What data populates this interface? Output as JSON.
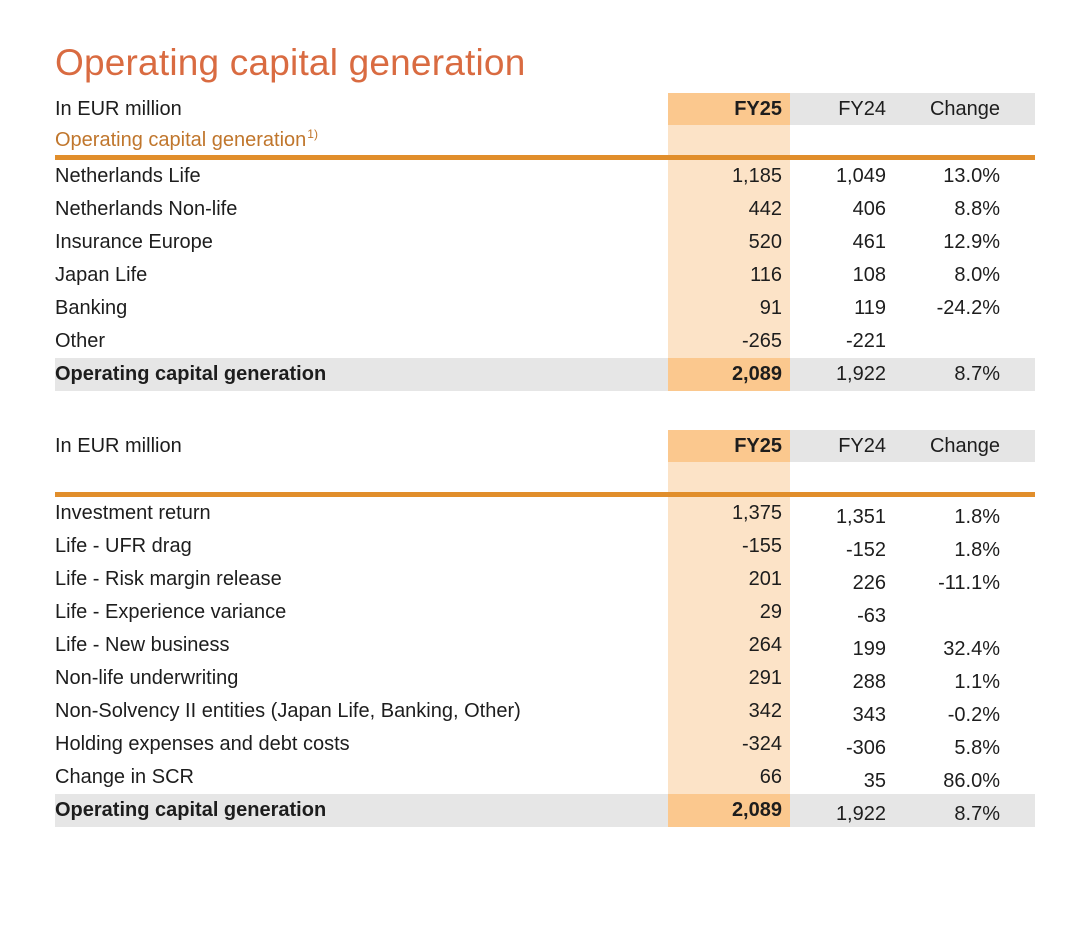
{
  "page": {
    "title": "Operating capital generation"
  },
  "colors": {
    "title_orange": "#d96b41",
    "subtitle_orange": "#c0762c",
    "rule_orange": "#e18e2b",
    "fy25_header_bg": "#fbc88e",
    "fy25_column_bg": "#fce3c7",
    "gray_header_bg": "#e5e5e5",
    "total_row_bg": "#e6e6e6"
  },
  "table1": {
    "unit_label": "In EUR million",
    "columns": {
      "fy25": "FY25",
      "fy24": "FY24",
      "change": "Change"
    },
    "subtitle": "Operating capital generation",
    "subtitle_footnote": "1)",
    "rows": [
      {
        "label": "Netherlands Life",
        "fy25": "1,185",
        "fy24": "1,049",
        "change": "13.0%"
      },
      {
        "label": "Netherlands Non-life",
        "fy25": "442",
        "fy24": "406",
        "change": "8.8%"
      },
      {
        "label": "Insurance Europe",
        "fy25": "520",
        "fy24": "461",
        "change": "12.9%"
      },
      {
        "label": "Japan Life",
        "fy25": "116",
        "fy24": "108",
        "change": "8.0%"
      },
      {
        "label": "Banking",
        "fy25": "91",
        "fy24": "119",
        "change": "-24.2%"
      },
      {
        "label": "Other",
        "fy25": "-265",
        "fy24": "-221",
        "change": ""
      }
    ],
    "total": {
      "label": "Operating capital generation",
      "fy25": "2,089",
      "fy24": "1,922",
      "change": "8.7%"
    }
  },
  "table2": {
    "unit_label": "In EUR million",
    "columns": {
      "fy25": "FY25",
      "fy24": "FY24",
      "change": "Change"
    },
    "rows": [
      {
        "label": "Investment return",
        "fy25": "1,375",
        "fy24": "1,351",
        "change": "1.8%"
      },
      {
        "label": "Life - UFR drag",
        "fy25": "-155",
        "fy24": "-152",
        "change": "1.8%"
      },
      {
        "label": "Life - Risk margin release",
        "fy25": "201",
        "fy24": "226",
        "change": "-11.1%"
      },
      {
        "label": "Life - Experience variance",
        "fy25": "29",
        "fy24": "-63",
        "change": ""
      },
      {
        "label": "Life - New business",
        "fy25": "264",
        "fy24": "199",
        "change": "32.4%"
      },
      {
        "label": "Non-life underwriting",
        "fy25": "291",
        "fy24": "288",
        "change": "1.1%"
      },
      {
        "label": "Non-Solvency II entities (Japan Life, Banking, Other)",
        "fy25": "342",
        "fy24": "343",
        "change": "-0.2%"
      },
      {
        "label": "Holding expenses and debt costs",
        "fy25": "-324",
        "fy24": "-306",
        "change": "5.8%"
      },
      {
        "label": "Change in SCR",
        "fy25": "66",
        "fy24": "35",
        "change": "86.0%"
      }
    ],
    "total": {
      "label": "Operating capital generation",
      "fy25": "2,089",
      "fy24": "1,922",
      "change": "8.7%"
    }
  }
}
